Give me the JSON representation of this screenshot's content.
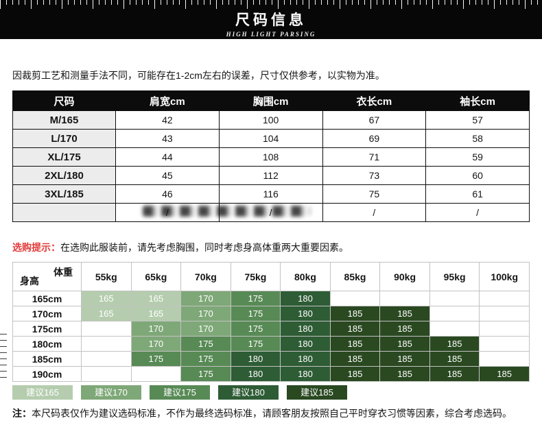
{
  "banner": {
    "title": "尺码信息",
    "subtitle": "HIGH LIGHT PARSING"
  },
  "intro": "因裁剪工艺和测量手法不同，可能存在1-2cm左右的误差，尺寸仅供参考，以实物为准。",
  "size_table": {
    "headers": [
      "尺码",
      "肩宽cm",
      "胸围cm",
      "衣长cm",
      "袖长cm"
    ],
    "rows": [
      {
        "label": "M/165",
        "values": [
          "42",
          "100",
          "67",
          "57"
        ]
      },
      {
        "label": "L/170",
        "values": [
          "43",
          "104",
          "69",
          "58"
        ]
      },
      {
        "label": "XL/175",
        "values": [
          "44",
          "108",
          "71",
          "59"
        ]
      },
      {
        "label": "2XL/180",
        "values": [
          "45",
          "112",
          "73",
          "60"
        ]
      },
      {
        "label": "3XL/185",
        "values": [
          "46",
          "116",
          "75",
          "61"
        ]
      },
      {
        "label": "",
        "values": [
          "/",
          "/",
          "/",
          "/"
        ]
      }
    ]
  },
  "tip": {
    "label": "选购提示：",
    "label_color": "#e23a3a",
    "text": "在选购此服装前，请先考虑胸围，同时考虑身高体重两大重要因素。"
  },
  "matrix": {
    "corner": {
      "top": "体重",
      "bottom": "身高"
    },
    "weight_headers": [
      "55kg",
      "65kg",
      "70kg",
      "75kg",
      "80kg",
      "85kg",
      "90kg",
      "95kg",
      "100kg"
    ],
    "rows": [
      {
        "height": "165cm",
        "cells": [
          "165",
          "165",
          "170",
          "175",
          "180",
          "",
          "",
          "",
          ""
        ]
      },
      {
        "height": "170cm",
        "cells": [
          "165",
          "165",
          "170",
          "175",
          "180",
          "185",
          "185",
          "",
          ""
        ]
      },
      {
        "height": "175cm",
        "cells": [
          "",
          "170",
          "170",
          "175",
          "180",
          "185",
          "185",
          "",
          ""
        ]
      },
      {
        "height": "180cm",
        "cells": [
          "",
          "170",
          "175",
          "175",
          "180",
          "185",
          "185",
          "185",
          ""
        ]
      },
      {
        "height": "185cm",
        "cells": [
          "",
          "175",
          "175",
          "180",
          "180",
          "185",
          "185",
          "185",
          ""
        ]
      },
      {
        "height": "190cm",
        "cells": [
          "",
          "",
          "175",
          "180",
          "180",
          "185",
          "185",
          "185",
          "185"
        ]
      }
    ],
    "colors": {
      "165": "#b5cdae",
      "170": "#7fa878",
      "175": "#588a55",
      "180": "#2e5c35",
      "185": "#2a4921"
    }
  },
  "legend": [
    {
      "label": "建议165",
      "color": "#b5cdae"
    },
    {
      "label": "建议170",
      "color": "#7fa878"
    },
    {
      "label": "建议175",
      "color": "#588a55"
    },
    {
      "label": "建议180",
      "color": "#2e5c35"
    },
    {
      "label": "建议185",
      "color": "#2a4921"
    }
  ],
  "note": {
    "label": "注：",
    "text": "本尺码表仅作为建议选码标准，不作为最终选码标准，请顾客朋友按照自己平时穿衣习惯等因素，综合考虑选码。"
  }
}
